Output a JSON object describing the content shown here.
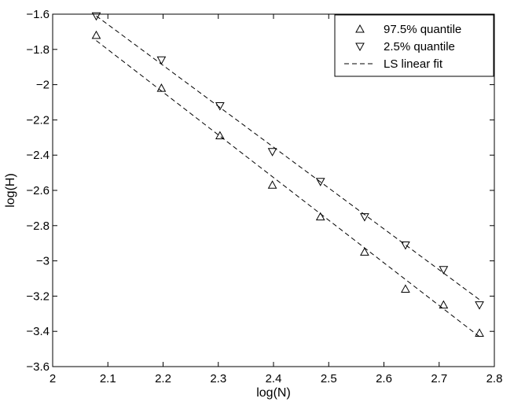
{
  "chart_data": {
    "type": "scatter",
    "title": "",
    "xlabel": "log(N)",
    "ylabel": "log(H)",
    "xlim": [
      2,
      2.8
    ],
    "ylim": [
      -3.6,
      -1.6
    ],
    "xticks": [
      2,
      2.1,
      2.2,
      2.3,
      2.4,
      2.5,
      2.6,
      2.7,
      2.8
    ],
    "yticks": [
      -1.6,
      -1.8,
      -2,
      -2.2,
      -2.4,
      -2.6,
      -2.8,
      -3,
      -3.2,
      -3.4,
      -3.6
    ],
    "xtick_labels": [
      "2",
      "2.1",
      "2.2",
      "2.3",
      "2.4",
      "2.5",
      "2.6",
      "2.7",
      "2.8"
    ],
    "ytick_labels": [
      "−1.6",
      "−1.8",
      "−2",
      "−2.2",
      "−2.4",
      "−2.6",
      "−2.8",
      "−3",
      "−3.2",
      "−3.4",
      "−3.6"
    ],
    "grid": false,
    "legend_position": "top-right",
    "series": [
      {
        "name": "97.5% quantile",
        "marker": "triangle-up",
        "x": [
          2.079,
          2.197,
          2.303,
          2.398,
          2.485,
          2.565,
          2.639,
          2.708,
          2.773
        ],
        "y": [
          -1.72,
          -2.02,
          -2.29,
          -2.57,
          -2.75,
          -2.95,
          -3.16,
          -3.25,
          -3.41
        ]
      },
      {
        "name": "2.5% quantile",
        "marker": "triangle-down",
        "x": [
          2.079,
          2.197,
          2.303,
          2.398,
          2.485,
          2.565,
          2.639,
          2.708,
          2.773
        ],
        "y": [
          -1.61,
          -1.86,
          -2.12,
          -2.38,
          -2.55,
          -2.75,
          -2.91,
          -3.05,
          -3.25
        ]
      }
    ],
    "fit_lines": [
      {
        "x": [
          2.079,
          2.773
        ],
        "y": [
          -1.75,
          -3.43
        ]
      },
      {
        "x": [
          2.079,
          2.773
        ],
        "y": [
          -1.61,
          -3.22
        ]
      }
    ],
    "legend": [
      {
        "label": "97.5% quantile",
        "symbol": "triangle-up"
      },
      {
        "label": "2.5% quantile",
        "symbol": "triangle-down"
      },
      {
        "label": "LS linear fit",
        "symbol": "dashed-line"
      }
    ],
    "colors": {
      "marker": "#000000",
      "fit_line": "#000000",
      "axes": "#000000",
      "background": "#ffffff"
    }
  }
}
